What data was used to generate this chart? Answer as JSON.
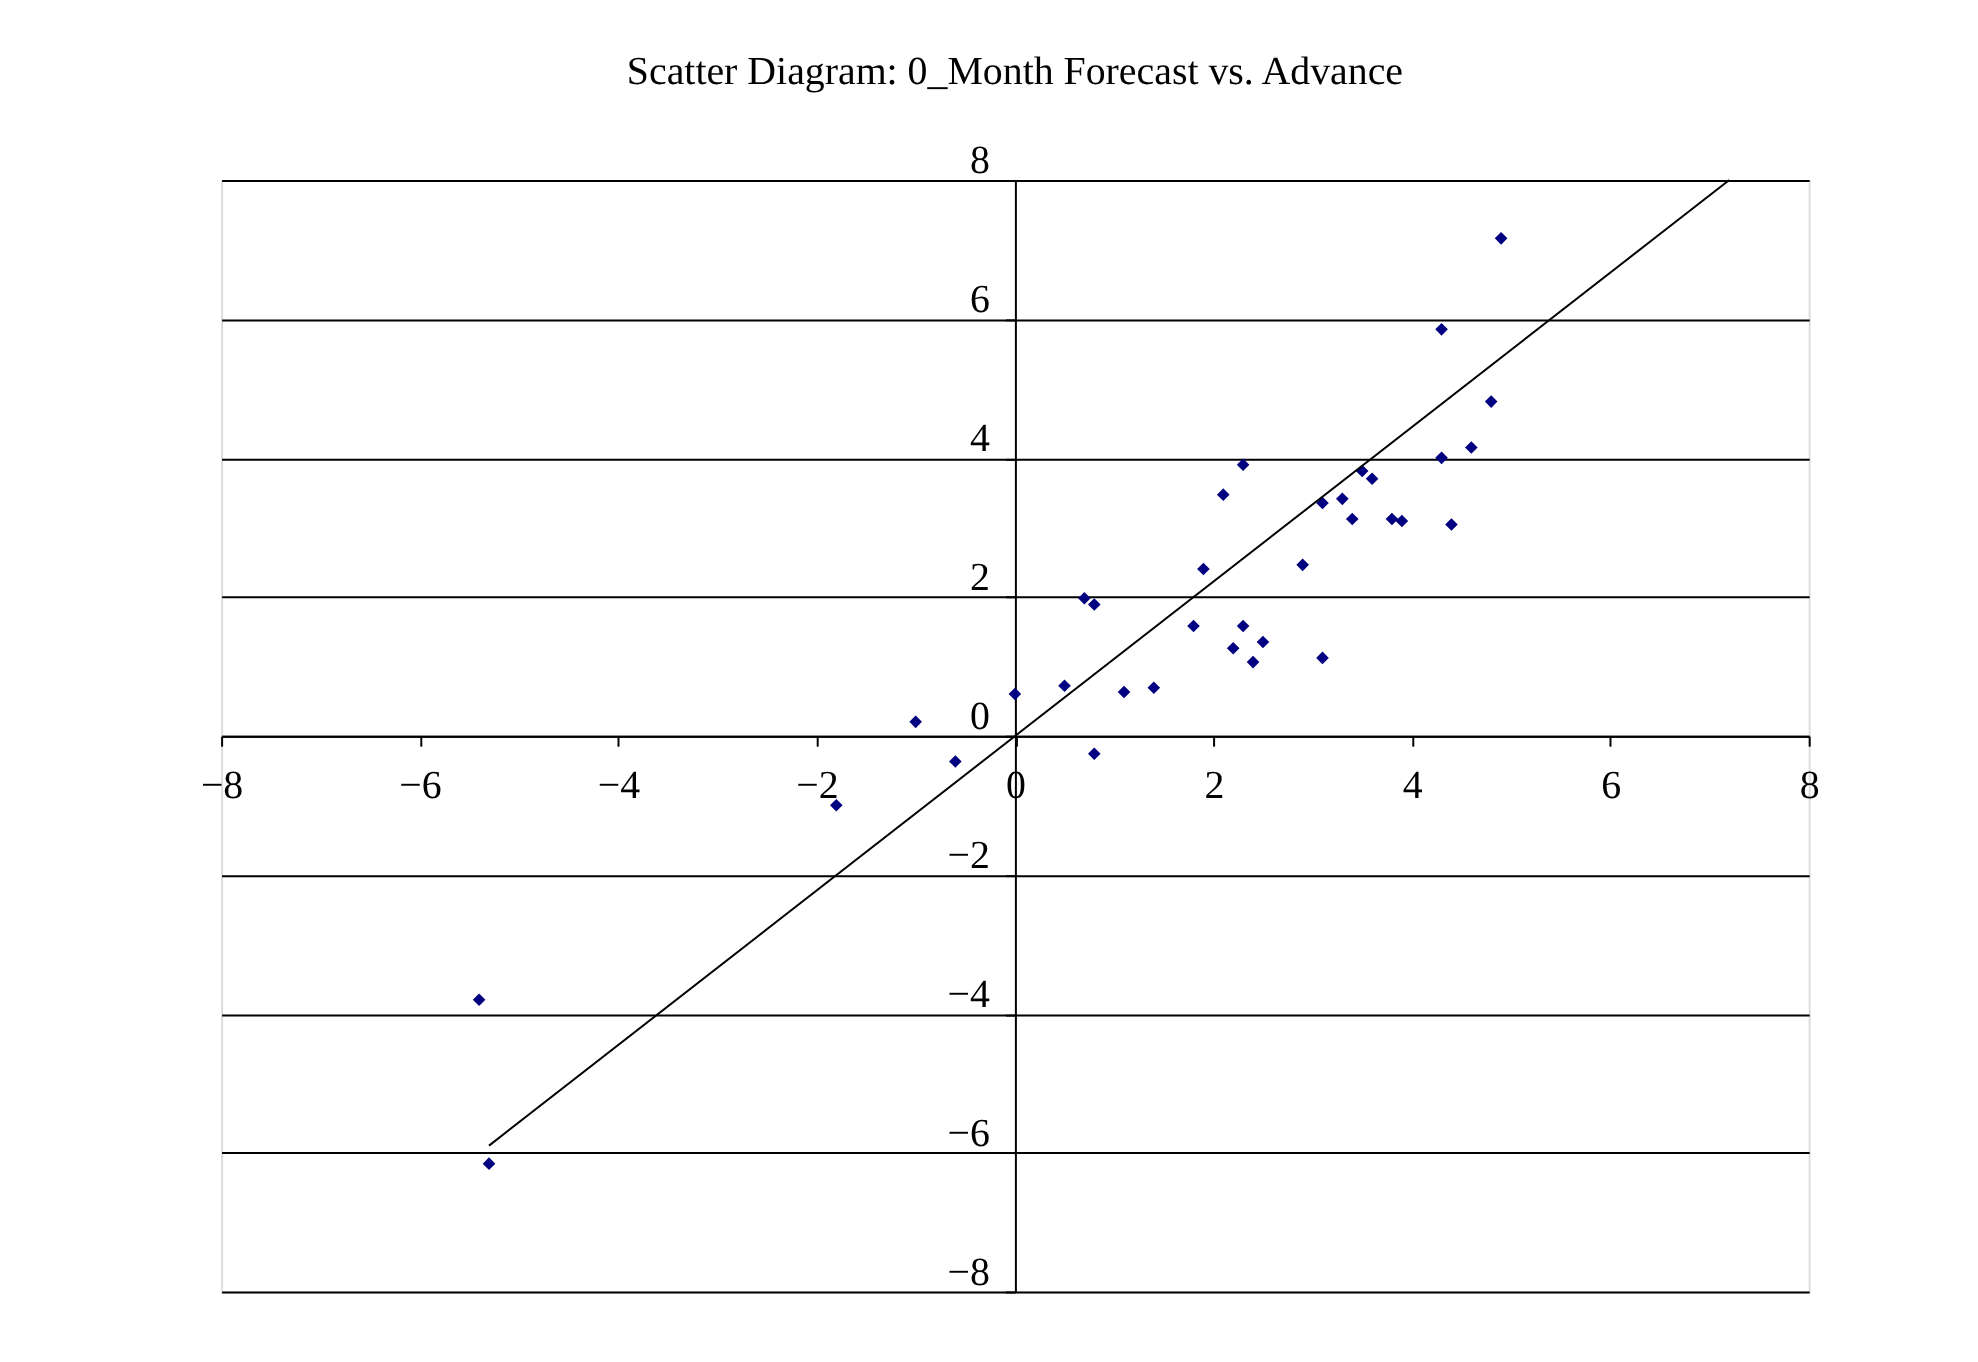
{
  "chart_data": {
    "type": "scatter",
    "title": "Scatter Diagram: 0_Month Forecast vs. Advance",
    "xlim": [
      -8,
      8
    ],
    "ylim": [
      -8,
      8
    ],
    "xticks": [
      -8,
      -6,
      -4,
      -2,
      0,
      2,
      4,
      6,
      8
    ],
    "yticks": [
      -8,
      -6,
      -4,
      -2,
      0,
      2,
      4,
      6,
      8
    ],
    "grid": "y",
    "series": [
      {
        "type": "scatter",
        "color": "#000080",
        "marker": "diamond",
        "x": [
          -1.0,
          -0.6,
          -1.8,
          -5.4,
          -5.3,
          0,
          0.5,
          0.7,
          0.8,
          0.8,
          1.1,
          1.4,
          1.8,
          1.9,
          2.1,
          2.2,
          2.3,
          2.3,
          2.4,
          2.5,
          2.9,
          3.1,
          3.1,
          3.3,
          3.4,
          3.5,
          3.6,
          3.8,
          3.9,
          4.3,
          4.3,
          4.4,
          4.6,
          4.8,
          4.9
        ],
        "values": [
          0.2,
          -0.37,
          -1.0,
          -3.8,
          -6.16,
          0.6,
          0.72,
          1.98,
          1.89,
          -0.26,
          0.63,
          0.69,
          1.58,
          2.4,
          3.47,
          1.26,
          1.58,
          3.9,
          1.06,
          1.35,
          2.46,
          3.35,
          1.12,
          3.41,
          3.12,
          3.81,
          3.7,
          3.12,
          3.09,
          4.0,
          5.85,
          3.04,
          4.15,
          4.81,
          7.16
        ]
      },
      {
        "type": "line",
        "color": "#000000",
        "line_style": "solid",
        "x": [
          -5.3,
          7.2
        ],
        "values": [
          -5.9,
          8
        ]
      }
    ]
  }
}
